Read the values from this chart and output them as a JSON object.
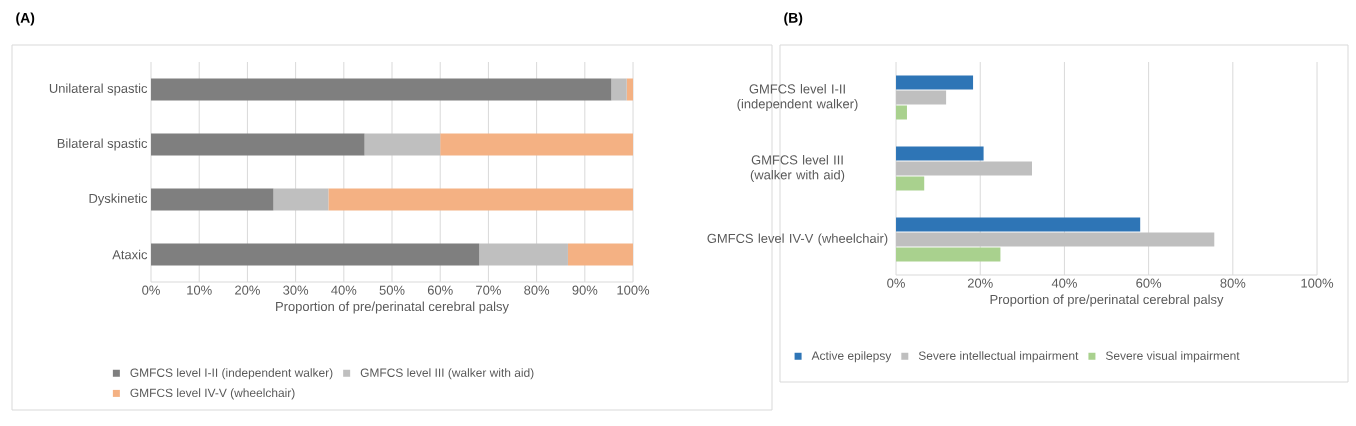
{
  "chart_data": [
    {
      "type": "bar",
      "title": "(A)",
      "orientation": "horizontal",
      "stacked": true,
      "categories": [
        "Unilateral spastic",
        "Bilateral spastic",
        "Dyskinetic",
        "Ataxic"
      ],
      "series": [
        {
          "name": "GMFCS level I-II (independent walker)",
          "color": "#7f7f7f",
          "values": [
            95.5,
            44.3,
            25.4,
            68.1
          ]
        },
        {
          "name": "GMFCS level III (walker with aid)",
          "color": "#bfbfbf",
          "values": [
            3.2,
            15.7,
            11.4,
            18.4
          ]
        },
        {
          "name": "GMFCS level IV-V (wheelchair)",
          "color": "#f4b183",
          "values": [
            1.3,
            40.0,
            63.2,
            13.5
          ]
        }
      ],
      "xlim": [
        0,
        100
      ],
      "xticks": [
        {
          "value": 0,
          "label": "0%"
        },
        {
          "value": 10,
          "label": "10%"
        },
        {
          "value": 20,
          "label": "20%"
        },
        {
          "value": 30,
          "label": "30%"
        },
        {
          "value": 40,
          "label": "40%"
        },
        {
          "value": 50,
          "label": "50%"
        },
        {
          "value": 60,
          "label": "60%"
        },
        {
          "value": 70,
          "label": "70%"
        },
        {
          "value": 80,
          "label": "80%"
        },
        {
          "value": 90,
          "label": "90%"
        },
        {
          "value": 100,
          "label": "100%"
        }
      ],
      "xlabel": "Proportion of pre/perinatal cerebral palsy",
      "grid": "x",
      "legend": "bottom"
    },
    {
      "type": "bar",
      "title": "(B)",
      "orientation": "horizontal",
      "categories": [
        "GMFCS level I-II (independent walker)",
        "GMFCS level III (walker with aid)",
        "GMFCS level IV-V (wheelchair)"
      ],
      "series": [
        {
          "name": "Active epilepsy",
          "color": "#2e75b6",
          "values": [
            18.3,
            20.8,
            58.0
          ]
        },
        {
          "name": "Severe intellectual impairment",
          "color": "#bfbfbf",
          "values": [
            11.9,
            32.3,
            75.6
          ]
        },
        {
          "name": "Severe visual impairment",
          "color": "#a9d18e",
          "values": [
            2.6,
            6.7,
            24.8
          ]
        }
      ],
      "xlim": [
        0,
        100
      ],
      "xticks": [
        {
          "value": 0,
          "label": "0%"
        },
        {
          "value": 20,
          "label": "20%"
        },
        {
          "value": 40,
          "label": "40%"
        },
        {
          "value": 60,
          "label": "60%"
        },
        {
          "value": 80,
          "label": "80%"
        },
        {
          "value": 100,
          "label": "100%"
        }
      ],
      "xlabel": "Proportion of pre/perinatal cerebral palsy",
      "grid": "x",
      "legend": "bottom"
    }
  ]
}
